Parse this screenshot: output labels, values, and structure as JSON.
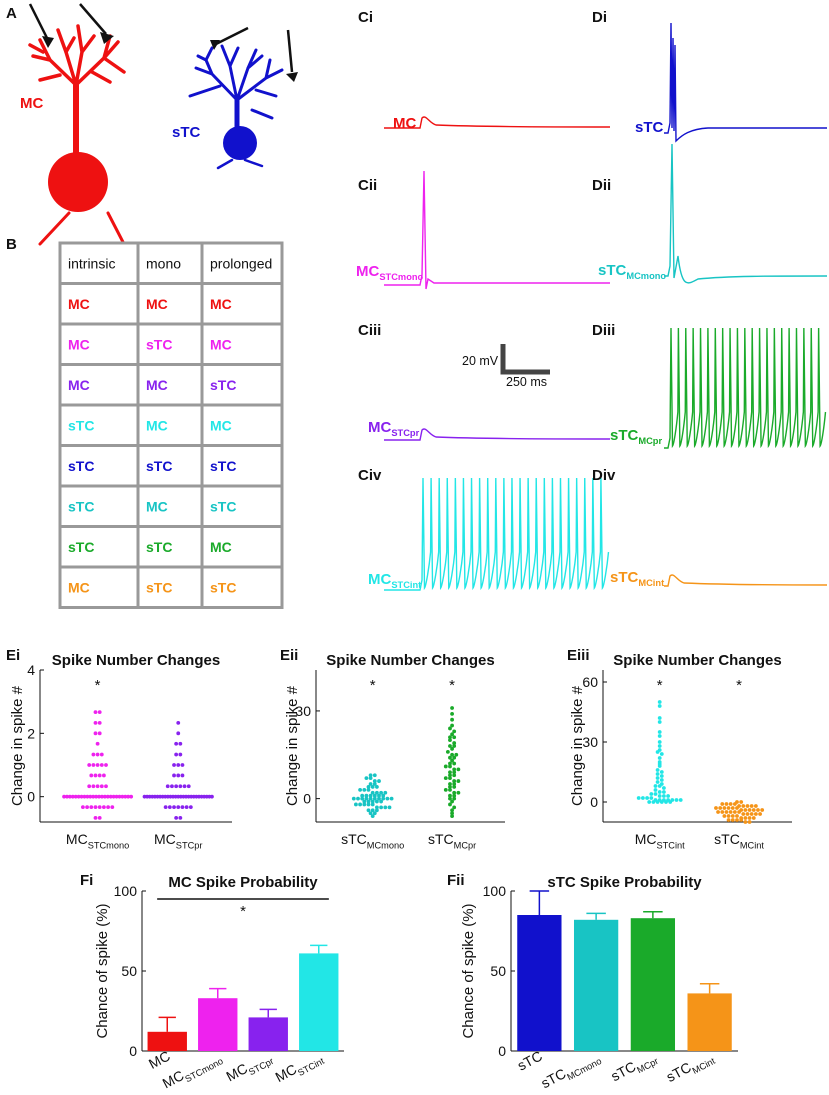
{
  "colors": {
    "MC": "#ee1111",
    "sTC": "#1111cc",
    "MC_STCmono": "#ee22ee",
    "MC_STCpr": "#8822ee",
    "MC_STCint": "#22e6e6",
    "sTC_MCmono": "#18c4c4",
    "sTC_MCpr": "#1aaa2a",
    "sTC_MCint": "#f59418",
    "grid": "#999999"
  },
  "panelA": {
    "letter": "A",
    "mc_label": "MC",
    "stc_label": "sTC"
  },
  "panelB": {
    "letter": "B",
    "headers": [
      "intrinsic",
      "mono",
      "prolonged"
    ],
    "rows": [
      [
        {
          "t": "MC",
          "c": "MC"
        },
        {
          "t": "MC",
          "c": "MC"
        },
        {
          "t": "MC",
          "c": "MC"
        }
      ],
      [
        {
          "t": "MC",
          "c": "MC_STCmono"
        },
        {
          "t": "sTC",
          "c": "MC_STCmono"
        },
        {
          "t": "MC",
          "c": "MC_STCmono"
        }
      ],
      [
        {
          "t": "MC",
          "c": "MC_STCpr"
        },
        {
          "t": "MC",
          "c": "MC_STCpr"
        },
        {
          "t": "sTC",
          "c": "MC_STCpr"
        }
      ],
      [
        {
          "t": "sTC",
          "c": "MC_STCint"
        },
        {
          "t": "MC",
          "c": "MC_STCint"
        },
        {
          "t": "MC",
          "c": "MC_STCint"
        }
      ],
      [
        {
          "t": "sTC",
          "c": "sTC"
        },
        {
          "t": "sTC",
          "c": "sTC"
        },
        {
          "t": "sTC",
          "c": "sTC"
        }
      ],
      [
        {
          "t": "sTC",
          "c": "sTC_MCmono"
        },
        {
          "t": "MC",
          "c": "sTC_MCmono"
        },
        {
          "t": "sTC",
          "c": "sTC_MCmono"
        }
      ],
      [
        {
          "t": "sTC",
          "c": "sTC_MCpr"
        },
        {
          "t": "sTC",
          "c": "sTC_MCpr"
        },
        {
          "t": "MC",
          "c": "sTC_MCpr"
        }
      ],
      [
        {
          "t": "MC",
          "c": "sTC_MCint"
        },
        {
          "t": "sTC",
          "c": "sTC_MCint"
        },
        {
          "t": "sTC",
          "c": "sTC_MCint"
        }
      ]
    ]
  },
  "traces": [
    {
      "panel": "Ci",
      "label": "MC",
      "sub": "",
      "color": "MC",
      "kind": "epsp"
    },
    {
      "panel": "Cii",
      "label": "MC",
      "sub": "STCmono",
      "color": "MC_STCmono",
      "kind": "single"
    },
    {
      "panel": "Ciii",
      "label": "MC",
      "sub": "STCpr",
      "color": "MC_STCpr",
      "kind": "epsp"
    },
    {
      "panel": "Civ",
      "label": "MC",
      "sub": "STCint",
      "color": "MC_STCint",
      "kind": "train"
    },
    {
      "panel": "Di",
      "label": "sTC",
      "sub": "",
      "color": "sTC",
      "kind": "burst"
    },
    {
      "panel": "Dii",
      "label": "sTC",
      "sub": "MCmono",
      "color": "sTC_MCmono",
      "kind": "single2"
    },
    {
      "panel": "Diii",
      "label": "sTC",
      "sub": "MCpr",
      "color": "sTC_MCpr",
      "kind": "train"
    },
    {
      "panel": "Div",
      "label": "sTC",
      "sub": "MCint",
      "color": "sTC_MCint",
      "kind": "epsp"
    }
  ],
  "scalebar": {
    "v": "20 mV",
    "h": "250 ms"
  },
  "chart_data": [
    {
      "panel": "Ei",
      "type": "scatter",
      "title": "Spike Number Changes",
      "ylabel": "Change in spike #",
      "ylim": [
        -0.8,
        4
      ],
      "yticks": [
        0,
        2,
        4
      ],
      "categories": [
        {
          "label": "MC",
          "sub": "STCmono",
          "color": "MC_STCmono"
        },
        {
          "label": "MC",
          "sub": "STCpr",
          "color": "MC_STCpr"
        }
      ],
      "series": [
        {
          "name": "MC_STCmono",
          "values": [
            2.67,
            2.67,
            2.33,
            2.33,
            2.0,
            2.0,
            1.67,
            1.33,
            1.33,
            1.33,
            1.0,
            1.0,
            1.0,
            1.0,
            1.0,
            0.67,
            0.67,
            0.67,
            0.67,
            0.33,
            0.33,
            0.33,
            0.33,
            0.33,
            0,
            0,
            0,
            0,
            0,
            0,
            0,
            0,
            0,
            0,
            0,
            0,
            0,
            0,
            0,
            0,
            0,
            0,
            0,
            0,
            0,
            0,
            0,
            0,
            -0.33,
            -0.33,
            -0.33,
            -0.33,
            -0.33,
            -0.33,
            -0.33,
            -0.33,
            -0.67,
            -0.67
          ]
        },
        {
          "name": "MC_STCpr",
          "values": [
            2.33,
            2.0,
            1.67,
            1.67,
            1.33,
            1.33,
            1.0,
            1.0,
            1.0,
            0.67,
            0.67,
            0.67,
            0.33,
            0.33,
            0.33,
            0.33,
            0.33,
            0.33,
            0,
            0,
            0,
            0,
            0,
            0,
            0,
            0,
            0,
            0,
            0,
            0,
            0,
            0,
            0,
            0,
            0,
            0,
            0,
            0,
            0,
            0,
            0,
            0,
            0,
            0,
            0,
            -0.33,
            -0.33,
            -0.33,
            -0.33,
            -0.33,
            -0.33,
            -0.33,
            -0.67,
            -0.67
          ]
        }
      ],
      "significance": [
        {
          "label": "*",
          "category": 0
        }
      ]
    },
    {
      "panel": "Eii",
      "type": "scatter",
      "title": "Spike Number Changes",
      "ylabel": "Change in spike #",
      "ylim": [
        -8,
        44
      ],
      "yticks": [
        0,
        30
      ],
      "categories": [
        {
          "label": "sTC",
          "sub": "MCmono",
          "color": "sTC_MCmono"
        },
        {
          "label": "sTC",
          "sub": "MCpr",
          "color": "sTC_MCpr"
        }
      ],
      "series": [
        {
          "name": "sTC_MCmono",
          "values": [
            8,
            8,
            7,
            7,
            6,
            6,
            5,
            5,
            4,
            4,
            4,
            3,
            3,
            3,
            2,
            2,
            2,
            2,
            1,
            1,
            1,
            1,
            1,
            1,
            0,
            0,
            0,
            0,
            0,
            0,
            0,
            0,
            0,
            0,
            -1,
            -1,
            -1,
            -1,
            -1,
            -2,
            -2,
            -2,
            -2,
            -2,
            -3,
            -3,
            -3,
            -3,
            -4,
            -4,
            -4,
            -5,
            -5,
            -6
          ]
        },
        {
          "name": "sTC_MCpr",
          "values": [
            31,
            29,
            27,
            25,
            24,
            23,
            22,
            21,
            21,
            20,
            19,
            18,
            18,
            17,
            16,
            15,
            15,
            14,
            14,
            13,
            12,
            12,
            11,
            11,
            10,
            10,
            9,
            9,
            8,
            8,
            7,
            7,
            6,
            6,
            5,
            5,
            4,
            4,
            3,
            3,
            2,
            2,
            1,
            1,
            0,
            0,
            -1,
            -2,
            -3,
            -4,
            -5,
            -6
          ]
        }
      ],
      "significance": [
        {
          "label": "*",
          "category": 0
        },
        {
          "label": "*",
          "category": 1
        }
      ]
    },
    {
      "panel": "Eiii",
      "type": "scatter",
      "title": "Spike Number Changes",
      "ylabel": "Change in spike #",
      "ylim": [
        -10,
        66
      ],
      "yticks": [
        0,
        30,
        60
      ],
      "categories": [
        {
          "label": "MC",
          "sub": "STCint",
          "color": "MC_STCint"
        },
        {
          "label": "sTC",
          "sub": "MCint",
          "color": "sTC_MCint"
        }
      ],
      "series": [
        {
          "name": "MC_STCint",
          "values": [
            50,
            48,
            42,
            40,
            35,
            33,
            30,
            28,
            26,
            25,
            24,
            22,
            20,
            19,
            18,
            16,
            15,
            14,
            13,
            12,
            11,
            10,
            9,
            8,
            8,
            7,
            6,
            5,
            5,
            4,
            4,
            3,
            3,
            3,
            2,
            2,
            2,
            2,
            1,
            1,
            1,
            1,
            1,
            1,
            1,
            0,
            0,
            0,
            0,
            0,
            0
          ]
        },
        {
          "name": "sTC_MCint",
          "values": [
            0,
            0,
            -1,
            -1,
            -1,
            -1,
            -2,
            -2,
            -2,
            -2,
            -2,
            -3,
            -3,
            -3,
            -3,
            -3,
            -3,
            -4,
            -4,
            -4,
            -4,
            -4,
            -4,
            -5,
            -5,
            -5,
            -5,
            -5,
            -5,
            -6,
            -6,
            -6,
            -6,
            -6,
            -7,
            -7,
            -7,
            -7,
            -8,
            -8,
            -8,
            -8,
            -9,
            -9,
            -9,
            -9,
            -10,
            -10
          ]
        }
      ],
      "significance": [
        {
          "label": "*",
          "category": 0
        },
        {
          "label": "*",
          "category": 1
        }
      ]
    },
    {
      "panel": "Fi",
      "type": "bar",
      "title": "MC Spike Probability",
      "ylabel": "Chance of spike (%)",
      "ylim": [
        0,
        100
      ],
      "yticks": [
        0,
        50,
        100
      ],
      "categories": [
        {
          "label": "MC",
          "sub": "",
          "color": "MC"
        },
        {
          "label": "MC",
          "sub": "STCmono",
          "color": "MC_STCmono"
        },
        {
          "label": "MC",
          "sub": "STCpr",
          "color": "MC_STCpr"
        },
        {
          "label": "MC",
          "sub": "STCint",
          "color": "MC_STCint"
        }
      ],
      "values": [
        12,
        33,
        21,
        61
      ],
      "errors": [
        9,
        6,
        5,
        5
      ],
      "significance": [
        {
          "label": "*",
          "from": 0,
          "to": 3,
          "level": 95
        }
      ]
    },
    {
      "panel": "Fii",
      "type": "bar",
      "title": "sTC Spike Probability",
      "ylabel": "Chance of spike (%)",
      "ylim": [
        0,
        100
      ],
      "yticks": [
        0,
        50,
        100
      ],
      "categories": [
        {
          "label": "sTC",
          "sub": "",
          "color": "sTC"
        },
        {
          "label": "sTC",
          "sub": "MCmono",
          "color": "sTC_MCmono"
        },
        {
          "label": "sTC",
          "sub": "MCpr",
          "color": "sTC_MCpr"
        },
        {
          "label": "sTC",
          "sub": "MCint",
          "color": "sTC_MCint"
        }
      ],
      "values": [
        85,
        82,
        83,
        36
      ],
      "errors": [
        15,
        4,
        4,
        6
      ],
      "significance": []
    }
  ]
}
